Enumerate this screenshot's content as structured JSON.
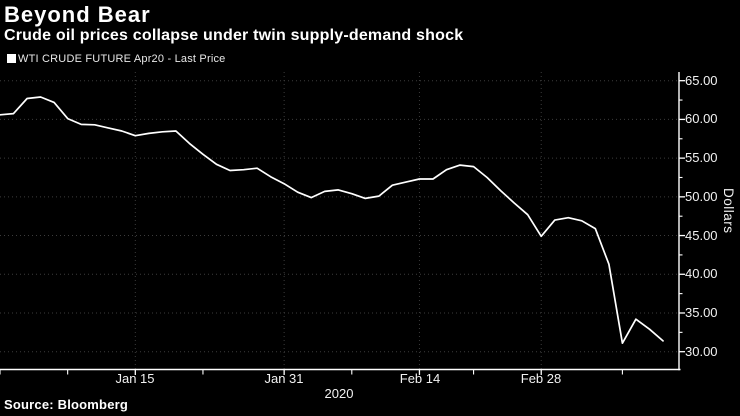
{
  "header": {
    "title": "Beyond Bear",
    "subtitle": "Crude oil prices collapse under twin supply-demand shock"
  },
  "legend": {
    "marker": "filled-square",
    "label": "WTI CRUDE FUTURE Apr20 - Last Price"
  },
  "source": "Source: Bloomberg",
  "colors": {
    "background": "#000000",
    "text": "#ffffff",
    "line": "#ffffff",
    "grid": "#3c3c3c",
    "axis": "#ffffff"
  },
  "chart_data": {
    "type": "line",
    "title": "Beyond Bear",
    "subtitle": "Crude oil prices collapse under twin supply-demand shock",
    "series_name": "WTI CRUDE FUTURE Apr20 - Last Price",
    "xlabel": "2020",
    "ylabel": "Dollars",
    "ylim": [
      28.5,
      66.5
    ],
    "grid": true,
    "legend_position": "top-left",
    "y_tick_values": [
      65,
      60,
      55,
      50,
      45,
      40,
      35,
      30
    ],
    "y_tick_labels": [
      "65.00",
      "60.00",
      "55.00",
      "50.00",
      "45.00",
      "40.00",
      "35.00",
      "30.00"
    ],
    "y_minor_tick_values": [
      62.5,
      57.5,
      52.5,
      47.5,
      42.5,
      37.5,
      32.5
    ],
    "x": [
      "Dec 31",
      "Jan 2",
      "Jan 3",
      "Jan 6",
      "Jan 7",
      "Jan 8",
      "Jan 9",
      "Jan 10",
      "Jan 13",
      "Jan 14",
      "Jan 15",
      "Jan 16",
      "Jan 17",
      "Jan 21",
      "Jan 22",
      "Jan 23",
      "Jan 24",
      "Jan 27",
      "Jan 28",
      "Jan 29",
      "Jan 30",
      "Jan 31",
      "Feb 3",
      "Feb 4",
      "Feb 5",
      "Feb 6",
      "Feb 7",
      "Feb 10",
      "Feb 11",
      "Feb 12",
      "Feb 13",
      "Feb 14",
      "Feb 18",
      "Feb 19",
      "Feb 20",
      "Feb 21",
      "Feb 24",
      "Feb 25",
      "Feb 26",
      "Feb 27",
      "Feb 28",
      "Mar 2",
      "Mar 3",
      "Mar 4",
      "Mar 5",
      "Mar 6",
      "Mar 9",
      "Mar 10",
      "Mar 11",
      "Mar 12"
    ],
    "values": [
      60.6,
      60.75,
      62.7,
      62.9,
      62.2,
      60.1,
      59.35,
      59.3,
      58.9,
      58.5,
      57.9,
      58.2,
      58.4,
      58.5,
      56.9,
      55.5,
      54.2,
      53.4,
      53.5,
      53.7,
      52.6,
      51.7,
      50.6,
      49.9,
      50.7,
      50.9,
      50.4,
      49.8,
      50.1,
      51.5,
      51.9,
      52.3,
      52.3,
      53.5,
      54.1,
      53.9,
      52.5,
      50.8,
      49.2,
      47.7,
      44.9,
      47.0,
      47.3,
      46.9,
      45.9,
      41.3,
      31.1,
      34.2,
      32.9,
      31.4
    ],
    "x_major_ticks": [
      {
        "label": "Jan 15",
        "index": 10
      },
      {
        "label": "Jan 31",
        "index": 21
      },
      {
        "label": "Feb 14",
        "index": 31
      },
      {
        "label": "Feb 28",
        "index": 40
      }
    ],
    "x_minor_tick_indices": [
      0,
      5,
      15,
      26,
      35,
      46
    ]
  }
}
